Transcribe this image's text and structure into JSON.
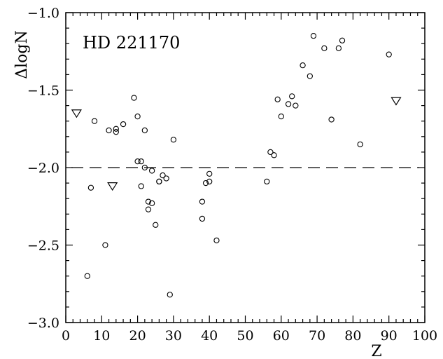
{
  "chart_data": {
    "type": "scatter",
    "title": "HD 221170",
    "xlabel": "Z",
    "ylabel": "ΔlogN",
    "xlim": [
      0,
      100
    ],
    "ylim": [
      -3.0,
      -1.0
    ],
    "x_ticks": [
      0,
      10,
      20,
      30,
      40,
      50,
      60,
      70,
      80,
      90,
      100
    ],
    "x_tick_labels": [
      "0",
      "10",
      "20",
      "30",
      "40",
      "50",
      "60",
      "70",
      "80",
      "90",
      "100"
    ],
    "y_ticks": [
      -3.0,
      -2.5,
      -2.0,
      -1.5,
      -1.0
    ],
    "y_tick_labels": [
      "−3.0",
      "−2.5",
      "−2.0",
      "−1.5",
      "−1.0"
    ],
    "reference_line": {
      "y": -2.0,
      "style": "dashed"
    },
    "series": [
      {
        "marker": "circle",
        "points": [
          [
            6,
            -2.7
          ],
          [
            7,
            -2.13
          ],
          [
            8,
            -1.7
          ],
          [
            11,
            -2.5
          ],
          [
            12,
            -1.76
          ],
          [
            14,
            -1.75
          ],
          [
            14,
            -1.77
          ],
          [
            16,
            -1.72
          ],
          [
            19,
            -1.55
          ],
          [
            20,
            -1.67
          ],
          [
            20,
            -1.96
          ],
          [
            21,
            -1.96
          ],
          [
            21,
            -2.12
          ],
          [
            22,
            -1.76
          ],
          [
            22,
            -2.0
          ],
          [
            23,
            -2.22
          ],
          [
            23,
            -2.27
          ],
          [
            24,
            -2.02
          ],
          [
            24,
            -2.23
          ],
          [
            25,
            -2.37
          ],
          [
            26,
            -2.09
          ],
          [
            26,
            -2.09
          ],
          [
            27,
            -2.05
          ],
          [
            28,
            -2.07
          ],
          [
            29,
            -2.82
          ],
          [
            30,
            -1.82
          ],
          [
            38,
            -2.22
          ],
          [
            38,
            -2.33
          ],
          [
            39,
            -2.1
          ],
          [
            40,
            -2.04
          ],
          [
            40,
            -2.09
          ],
          [
            42,
            -2.47
          ],
          [
            56,
            -2.09
          ],
          [
            57,
            -1.9
          ],
          [
            58,
            -1.92
          ],
          [
            59,
            -1.56
          ],
          [
            60,
            -1.67
          ],
          [
            62,
            -1.59
          ],
          [
            63,
            -1.54
          ],
          [
            64,
            -1.6
          ],
          [
            66,
            -1.34
          ],
          [
            68,
            -1.41
          ],
          [
            69,
            -1.15
          ],
          [
            72,
            -1.23
          ],
          [
            74,
            -1.69
          ],
          [
            76,
            -1.23
          ],
          [
            77,
            -1.18
          ],
          [
            82,
            -1.85
          ],
          [
            90,
            -1.27
          ]
        ]
      },
      {
        "marker": "triangle-down",
        "points": [
          [
            3,
            -1.65
          ],
          [
            13,
            -2.12
          ],
          [
            92,
            -1.57
          ]
        ]
      }
    ]
  }
}
